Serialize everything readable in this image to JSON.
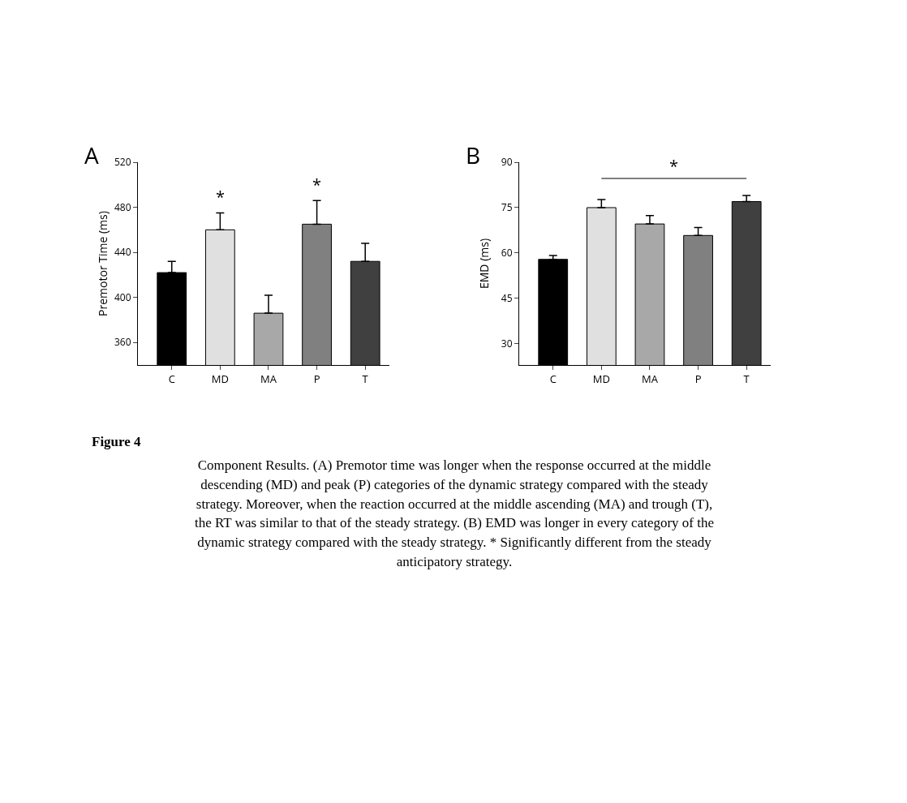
{
  "chart_data": [
    {
      "type": "bar",
      "title": "A",
      "ylabel": "Premotor Time (ms)",
      "categories": [
        "C",
        "MD",
        "MA",
        "P",
        "T"
      ],
      "values": [
        422,
        460,
        386,
        465,
        432
      ],
      "colors": [
        "#000000",
        "#e0e0e0",
        "#a8a8a8",
        "#808080",
        "#404040"
      ],
      "errors": [
        [
          422,
          432
        ],
        [
          460,
          475
        ],
        [
          386,
          402
        ],
        [
          465,
          486
        ],
        [
          432,
          448
        ]
      ],
      "ylim": [
        340,
        520
      ],
      "yticks": [
        360,
        400,
        440,
        480,
        520
      ],
      "annotations": [
        {
          "text": "*",
          "x": "MD",
          "y": 478
        },
        {
          "text": "*",
          "x": "P",
          "y": 489
        }
      ]
    },
    {
      "type": "bar",
      "title": "B",
      "ylabel": "EMD (ms)",
      "categories": [
        "C",
        "MD",
        "MA",
        "P",
        "T"
      ],
      "values": [
        57.9,
        75,
        69.6,
        65.8,
        77
      ],
      "colors": [
        "#000000",
        "#e0e0e0",
        "#a8a8a8",
        "#808080",
        "#404040"
      ],
      "errors": [
        [
          57.9,
          59.2
        ],
        [
          75,
          77.7
        ],
        [
          69.6,
          72.4
        ],
        [
          65.8,
          68.4
        ],
        [
          77,
          79
        ]
      ],
      "ylim": [
        23,
        90
      ],
      "yticks": [
        30,
        45,
        60,
        75,
        90
      ],
      "annotations": [
        "*",
        "Figure 4",
        "Component Results. (A) Premotor time was longer when the response occurred at the middle descending (MD) and peak (P) categories of the dynamic strategy compared with the steady strategy. Moreover, when the reaction occurred at the middle ascending (MA) and trough (T), the RT was similar to that of the steady strategy. (B) EMD was longer in every category of the dynamic strategy compared with the steady strategy. * Significantly different from the steady anticipatory strategy."
      ]
    }
  ]
}
